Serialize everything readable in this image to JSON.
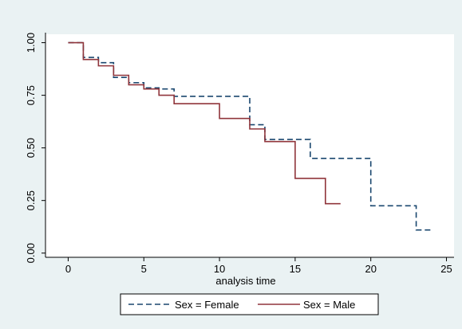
{
  "chart_data": {
    "type": "line",
    "step": true,
    "xlabel": "analysis time",
    "ylabel": "",
    "xlim": [
      -1.5,
      25.5
    ],
    "ylim": [
      -0.02,
      1.04
    ],
    "xticks": [
      0,
      5,
      10,
      15,
      20,
      25
    ],
    "yticks": [
      0,
      0.25,
      0.5,
      0.75,
      1
    ],
    "x_tick_labels": [
      "0",
      "5",
      "10",
      "15",
      "20",
      "25"
    ],
    "y_tick_labels": [
      "0.00",
      "0.25",
      "0.50",
      "0.75",
      "1.00"
    ],
    "grid": false,
    "legend_position": "bottom",
    "colors": {
      "outer_background": "#EAF2F3",
      "plot_background": "#FFFFFF",
      "axis": "#000000"
    },
    "series": [
      {
        "name": "Sex = Female",
        "line_style": "dashed",
        "color": "#1A476F",
        "x": [
          0,
          1,
          2,
          3,
          4,
          5,
          6,
          7,
          12,
          13,
          16,
          20,
          23,
          24
        ],
        "y": [
          1.0,
          0.93,
          0.905,
          0.835,
          0.81,
          0.785,
          0.78,
          0.745,
          0.61,
          0.54,
          0.45,
          0.225,
          0.11,
          0.11
        ]
      },
      {
        "name": "Sex = Male",
        "line_style": "solid",
        "color": "#90353B",
        "x": [
          0,
          1,
          2,
          3,
          4,
          5,
          6,
          7,
          10,
          12,
          13,
          15,
          17,
          18
        ],
        "y": [
          1.0,
          0.92,
          0.89,
          0.845,
          0.8,
          0.78,
          0.75,
          0.71,
          0.64,
          0.59,
          0.53,
          0.355,
          0.235,
          0.235
        ]
      }
    ]
  }
}
